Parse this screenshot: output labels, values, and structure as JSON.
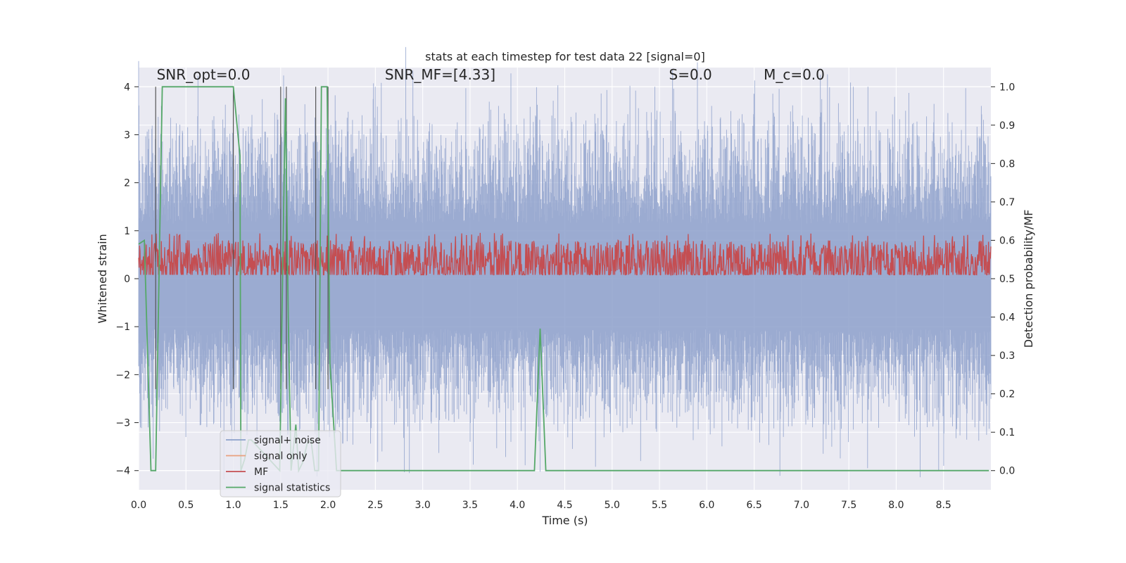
{
  "chart_data": {
    "type": "line",
    "title": "stats at each timestep for test data 22 [signal=0]",
    "xlabel": "Time (s)",
    "ylabel": "Whitened strain",
    "y2label": "Detection probability/MF",
    "xlim": [
      0.0,
      9.0
    ],
    "ylim": [
      -4.4,
      4.4
    ],
    "y2lim": [
      -0.05,
      1.05
    ],
    "x_ticks": [
      "0.0",
      "0.5",
      "1.0",
      "1.5",
      "2.0",
      "2.5",
      "3.0",
      "3.5",
      "4.0",
      "4.5",
      "5.0",
      "5.5",
      "6.0",
      "6.5",
      "7.0",
      "7.5",
      "8.0",
      "8.5"
    ],
    "y_ticks": [
      "4",
      "3",
      "2",
      "1",
      "0",
      "−1",
      "−2",
      "−3",
      "−4"
    ],
    "y2_ticks": [
      "1.0",
      "0.9",
      "0.8",
      "0.7",
      "0.6",
      "0.5",
      "0.4",
      "0.3",
      "0.2",
      "0.1",
      "0.0"
    ],
    "annotations": [
      {
        "text": "SNR_opt=0.0",
        "x": 0.19,
        "y": 4.15
      },
      {
        "text": "SNR_MF=[4.33]",
        "x": 2.6,
        "y": 4.15
      },
      {
        "text": "S=0.0",
        "x": 5.6,
        "y": 4.15
      },
      {
        "text": "M_c=0.0",
        "x": 6.6,
        "y": 4.15
      }
    ],
    "legend": {
      "position": "lower-left",
      "entries": [
        "signal+ noise",
        "signal only",
        "MF",
        "signal statistics"
      ]
    },
    "colors": {
      "noise": "#8da0cb",
      "signal_only": "#e8a07e",
      "mf": "#c44e52",
      "stat": "#55a868",
      "plot_bg": "#eaeaf2",
      "grid": "#ffffff",
      "vline": "#555555"
    },
    "grid": true,
    "series": [
      {
        "name": "signal+ noise",
        "description": "whitened strain, dense noise",
        "envelope_pos": 2.3,
        "envelope_neg": -2.1,
        "max_spikes": [
          [
            0.1,
            2.7
          ],
          [
            0.24,
            3.6
          ],
          [
            1.0,
            2.5
          ],
          [
            2.5,
            4.0
          ],
          [
            3.8,
            3.6
          ],
          [
            5.7,
            3.0
          ],
          [
            6.05,
            3.6
          ],
          [
            7.55,
            4.0
          ],
          [
            8.1,
            3.5
          ],
          [
            8.9,
            3.6
          ]
        ],
        "min_spikes": [
          [
            0.02,
            -3.1
          ],
          [
            0.5,
            -3.3
          ],
          [
            2.57,
            -3.6
          ],
          [
            3.5,
            -3.4
          ],
          [
            5.3,
            -3.8
          ],
          [
            7.7,
            -3.95
          ],
          [
            8.45,
            -4.0
          ],
          [
            8.5,
            -3.9
          ]
        ]
      },
      {
        "name": "signal only",
        "values": []
      },
      {
        "name": "MF",
        "axis": "right",
        "description": "matched filter output",
        "mean": 0.54,
        "band_low": 0.51,
        "band_high": 0.61,
        "max_value": 0.62
      },
      {
        "name": "signal statistics",
        "axis": "right",
        "x": [
          0.0,
          0.06,
          0.13,
          0.18,
          0.25,
          0.26,
          1.0,
          1.07,
          1.08,
          1.12,
          1.16,
          1.19,
          1.49,
          1.52,
          1.55,
          1.58,
          1.61,
          1.66,
          1.69,
          1.73,
          1.78,
          1.82,
          1.86,
          1.9,
          1.93,
          1.99,
          2.02,
          2.09,
          4.18,
          4.24,
          4.3,
          8.98
        ],
        "y": [
          0.59,
          0.6,
          0.0,
          0.0,
          1.0,
          1.0,
          1.0,
          0.82,
          0.0,
          0.03,
          0.08,
          0.08,
          0.0,
          0.5,
          0.97,
          0.4,
          0.0,
          0.12,
          0.0,
          0.02,
          0.07,
          0.08,
          0.0,
          0.0,
          1.0,
          1.0,
          0.28,
          0.0,
          0.0,
          0.37,
          0.0,
          0.0
        ]
      }
    ],
    "vlines_x": [
      0.18,
      1.0,
      1.5,
      1.56,
      1.87,
      2.0
    ]
  }
}
